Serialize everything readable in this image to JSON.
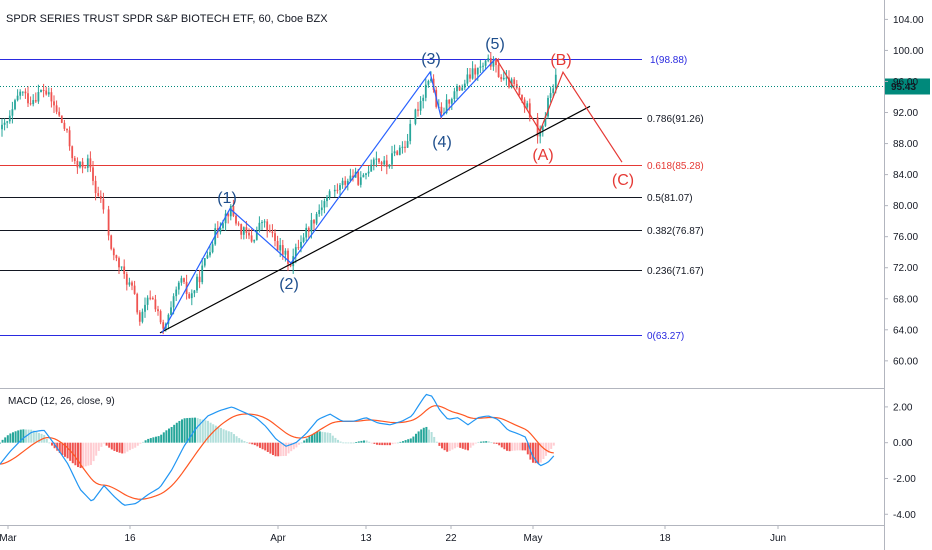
{
  "chart_data": {
    "type": "candlestick",
    "title": "SPDR SERIES TRUST SPDR S&P BIOTECH ETF, 60, Cboe BZX",
    "price_axis": {
      "range": [
        56.5,
        106.5
      ],
      "ticks": [
        104,
        100,
        96,
        92,
        88,
        84,
        80,
        76,
        72,
        68,
        64,
        60
      ],
      "tick_labels": [
        "104.00",
        "100.00",
        "96.00",
        "92.00",
        "88.00",
        "84.00",
        "80.00",
        "76.00",
        "72.00",
        "68.00",
        "64.00",
        "60.00"
      ]
    },
    "time_axis": {
      "labels": [
        "Mar",
        "16",
        "Apr",
        "13",
        "22",
        "May",
        "18",
        "Jun"
      ]
    },
    "last_price": {
      "value": 95.43,
      "label": "95.43",
      "color": "#00897b"
    },
    "fib_levels": [
      {
        "ratio": "1",
        "value": 98.88,
        "label": "1(98.88)",
        "color": "#2a2ae0"
      },
      {
        "ratio": "0.786",
        "value": 91.26,
        "label": "0.786(91.26)",
        "color": "#131722"
      },
      {
        "ratio": "0.618",
        "value": 85.28,
        "label": "0.618(85.28)",
        "color": "#e53935"
      },
      {
        "ratio": "0.5",
        "value": 81.07,
        "label": "0.5(81.07)",
        "color": "#131722"
      },
      {
        "ratio": "0.382",
        "value": 76.87,
        "label": "0.382(76.87)",
        "color": "#131722"
      },
      {
        "ratio": "0.236",
        "value": 71.67,
        "label": "0.236(71.67)",
        "color": "#131722"
      },
      {
        "ratio": "0",
        "value": 63.27,
        "label": "0(63.27)",
        "color": "#2a2ae0"
      }
    ],
    "impulse_wave_labels": [
      "(1)",
      "(2)",
      "(3)",
      "(4)",
      "(5)"
    ],
    "corrective_wave_labels": [
      "(A)",
      "(B)",
      "(C)"
    ],
    "colors": {
      "up": "#26a69a",
      "down": "#ef5350",
      "impulse_line": "#2962ff",
      "impulse_text": "#1e4e8c",
      "corrective": "#e53935",
      "trendline": "#000000",
      "macd_line": "#2196f3",
      "signal_line": "#ff5722"
    },
    "macd": {
      "title": "MACD (12, 26, close, 9)",
      "range": [
        -4.6,
        3.0
      ],
      "ticks": [
        2,
        0,
        -2,
        -4
      ],
      "tick_labels": [
        "2.00",
        "0.00",
        "-2.00",
        "-4.00"
      ]
    }
  }
}
